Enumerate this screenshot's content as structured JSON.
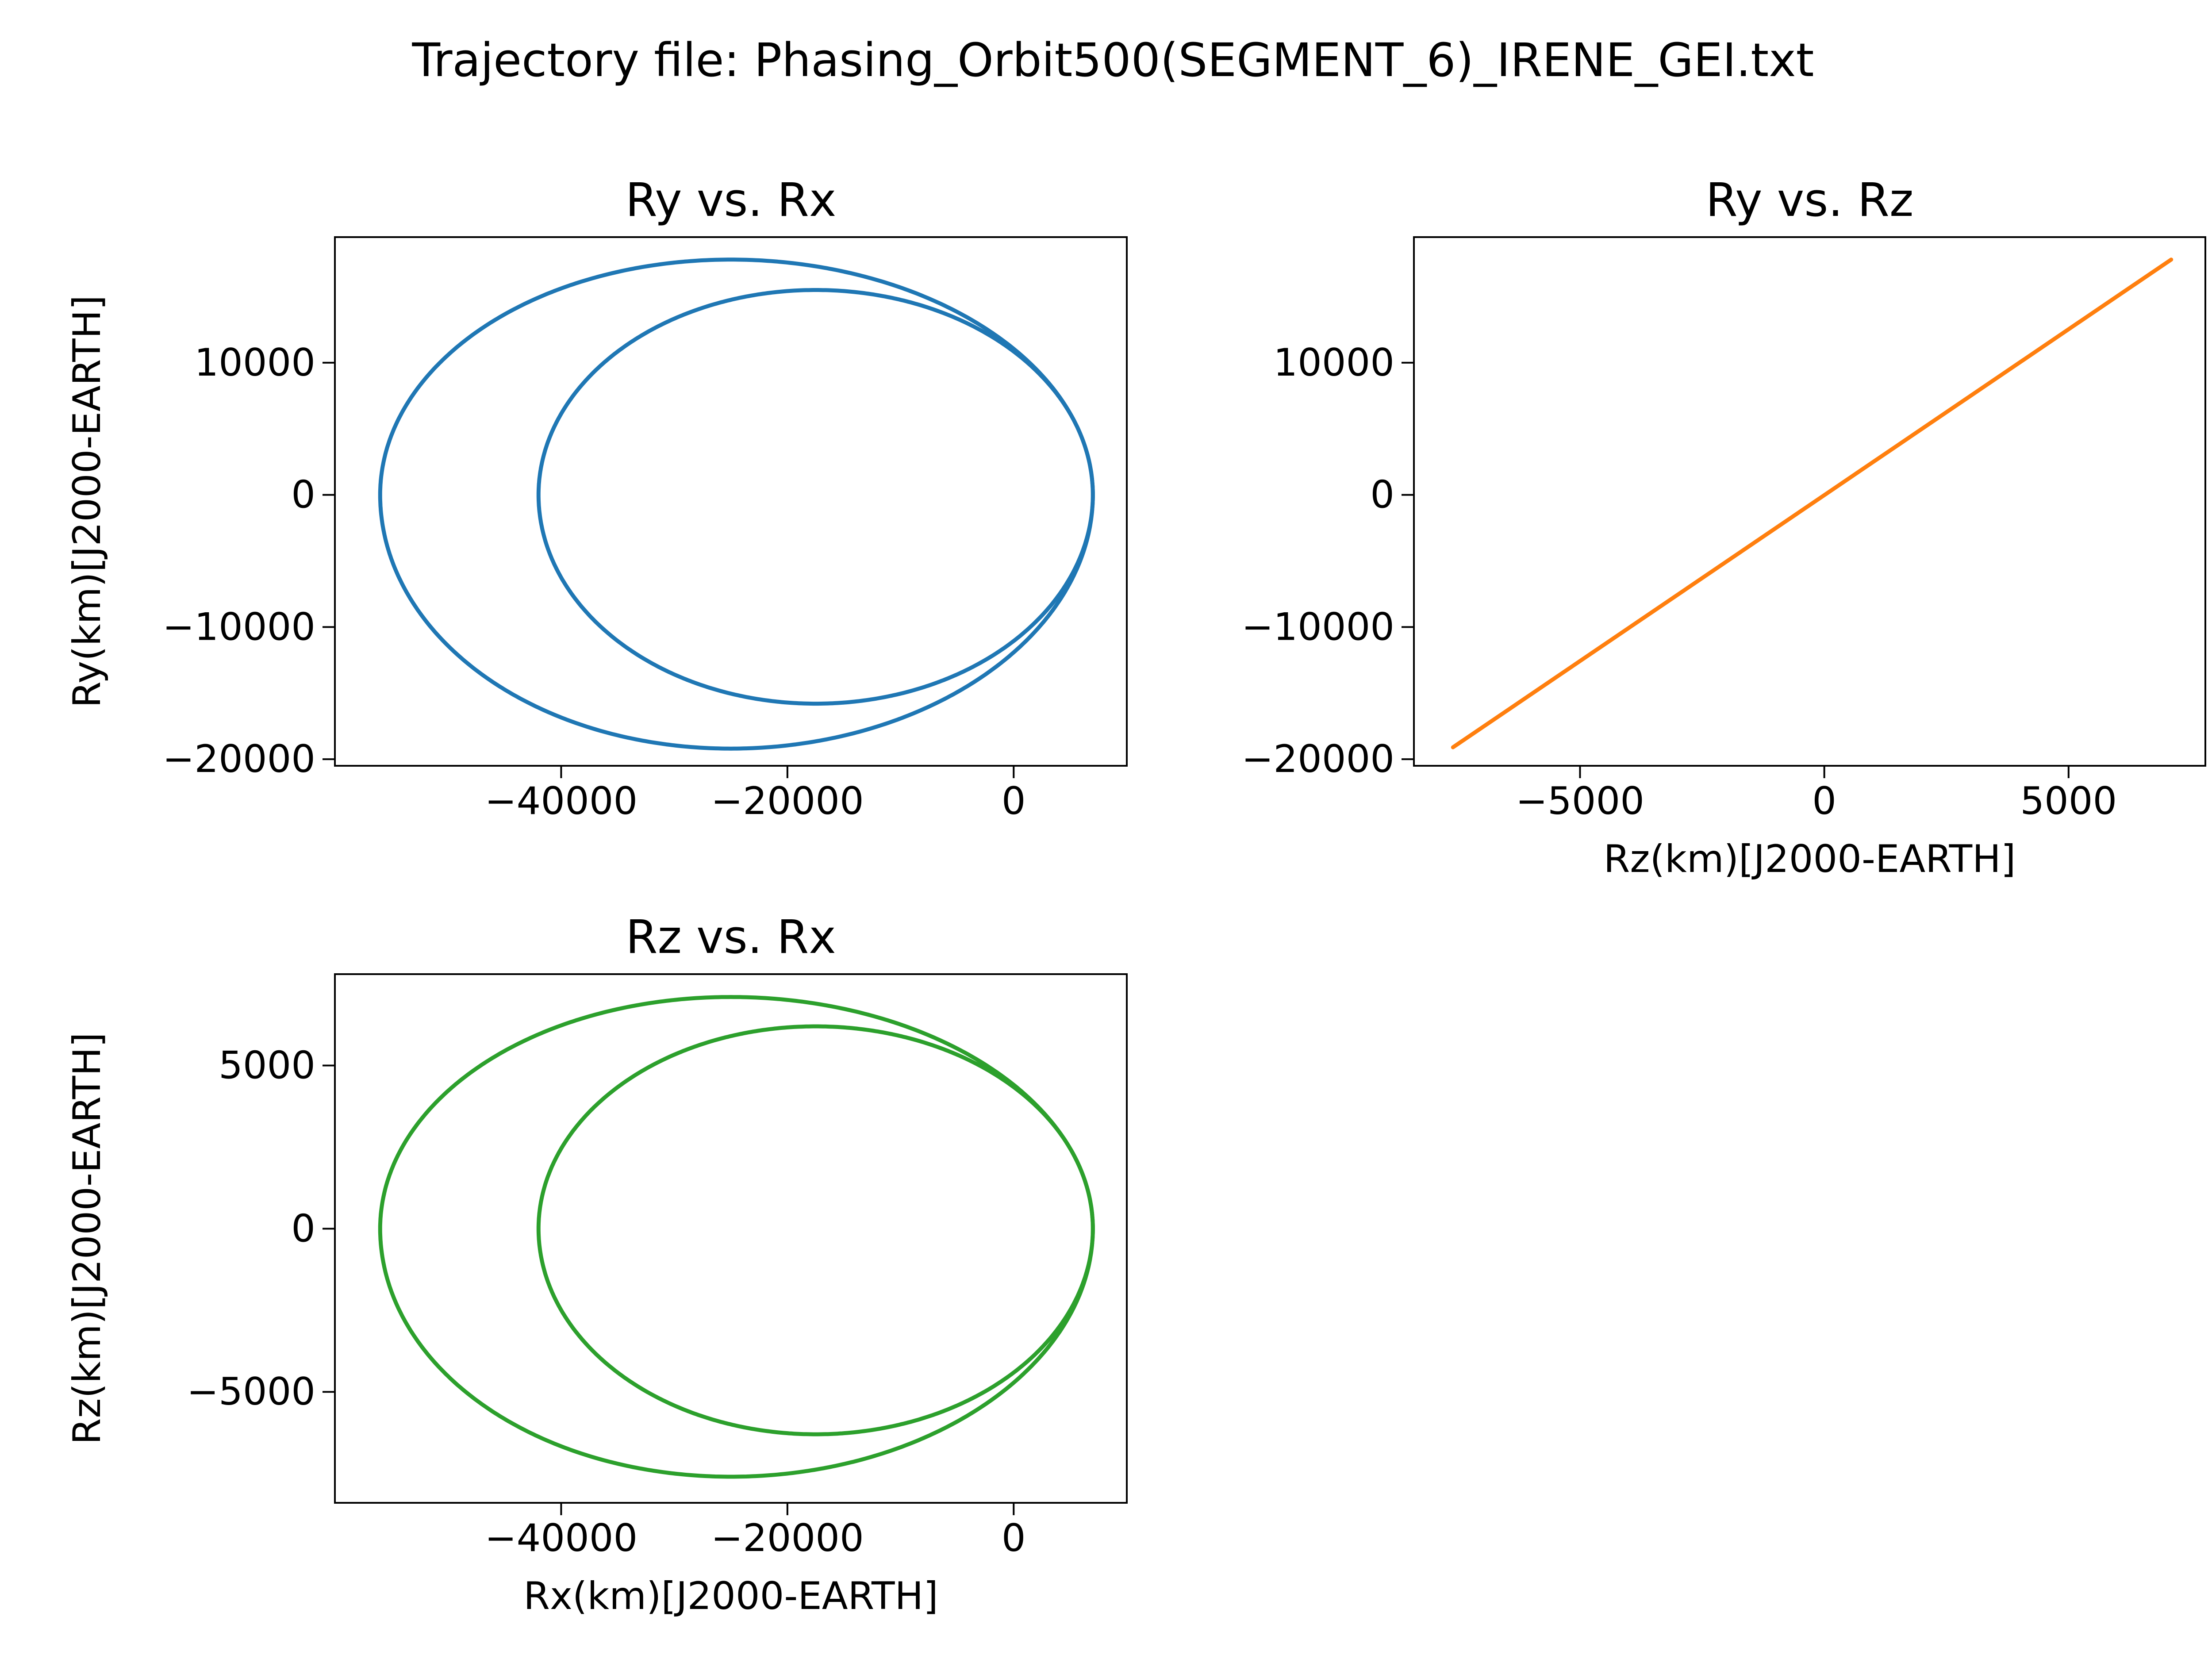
{
  "figure": {
    "suptitle": "Trajectory file: Phasing_Orbit500(SEGMENT_6)_IRENE_GEI.txt"
  },
  "chart_data": [
    {
      "id": "ry_vs_rx",
      "type": "line",
      "title": "Ry vs. Rx",
      "xlabel": "",
      "ylabel": "Ry(km)[J2000-EARTH]",
      "xlim": [
        -60000,
        10000
      ],
      "ylim": [
        -20500,
        19500
      ],
      "xticks": [
        -40000,
        -20000,
        0
      ],
      "xtick_labels": [
        "−40000",
        "−20000",
        "0"
      ],
      "yticks": [
        -20000,
        -10000,
        0,
        10000
      ],
      "ytick_labels": [
        "−20000",
        "−10000",
        "0",
        "10000"
      ],
      "color": "#1f77b4",
      "x_var": "Rx",
      "y_var": "Ry",
      "loops": [
        {
          "rx_min": -42000,
          "rx_max": 7000,
          "rx_apex": -17500,
          "ry_max": 15500,
          "ry_min": -15800
        },
        {
          "rx_min": -56000,
          "rx_max": 7000,
          "rx_apex": -25000,
          "ry_max": 17800,
          "ry_min": -19200
        }
      ],
      "grid": false
    },
    {
      "id": "ry_vs_rz",
      "type": "line",
      "title": "Ry vs. Rz",
      "xlabel": "Rz(km)[J2000-EARTH]",
      "ylabel": "",
      "xlim": [
        -8400,
        7800
      ],
      "ylim": [
        -20500,
        19500
      ],
      "xticks": [
        -5000,
        0,
        5000
      ],
      "xtick_labels": [
        "−5000",
        "0",
        "5000"
      ],
      "yticks": [
        -20000,
        -10000,
        0,
        10000
      ],
      "ytick_labels": [
        "−20000",
        "−10000",
        "0",
        "10000"
      ],
      "color": "#ff7f0e",
      "x": [
        -7600,
        7100
      ],
      "y": [
        -19100,
        17800
      ],
      "grid": false
    },
    {
      "id": "rz_vs_rx",
      "type": "line",
      "title": "Rz vs. Rx",
      "xlabel": "Rx(km)[J2000-EARTH]",
      "ylabel": "Rz(km)[J2000-EARTH]",
      "xlim": [
        -60000,
        10000
      ],
      "ylim": [
        -8400,
        7800
      ],
      "xticks": [
        -40000,
        -20000,
        0
      ],
      "xtick_labels": [
        "−40000",
        "−20000",
        "0"
      ],
      "yticks": [
        -5000,
        0,
        5000
      ],
      "ytick_labels": [
        "−5000",
        "0",
        "5000"
      ],
      "color": "#2ca02c",
      "x_var": "Rx",
      "y_var": "Rz",
      "loops": [
        {
          "rx_min": -42000,
          "rx_max": 7000,
          "rx_apex": -17500,
          "ry_max": 6200,
          "ry_min": -6300
        },
        {
          "rx_min": -56000,
          "rx_max": 7000,
          "rx_apex": -25000,
          "ry_max": 7100,
          "ry_min": -7600
        }
      ],
      "grid": false
    }
  ]
}
